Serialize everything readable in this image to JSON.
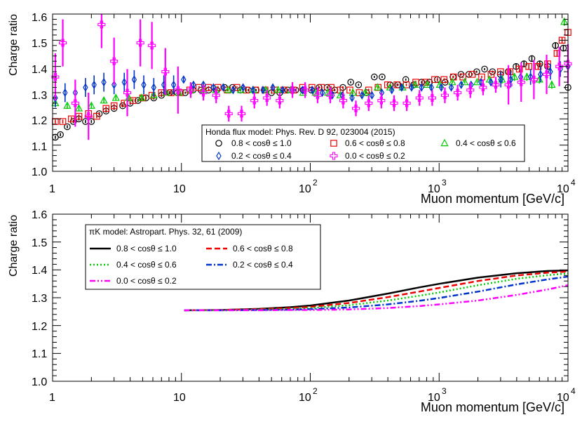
{
  "chart_data": [
    {
      "type": "scatter",
      "panel": "top",
      "xlabel": "Muon momentum [GeV/c]",
      "ylabel": "Charge ratio",
      "xscale": "log",
      "xlim": [
        1,
        10000
      ],
      "ylim": [
        1.0,
        1.6
      ],
      "x_tick_labels": [
        "1",
        "10",
        "10",
        "10",
        "10"
      ],
      "x_tick_exponents": [
        "",
        "",
        "2",
        "3",
        "4"
      ],
      "y_tick_labels": [
        "1.0",
        "1.1",
        "1.2",
        "1.3",
        "1.4",
        "1.5",
        "1.6"
      ],
      "legend_title": "Honda flux model: Phys. Rev. D 92, 023004 (2015)",
      "legend_placement": "center-right",
      "series": [
        {
          "name": "0.8 < cosθ ≤ 1.0",
          "marker": "circle",
          "color": "#000000",
          "x": [
            1.05,
            1.15,
            1.3,
            1.45,
            1.6,
            1.8,
            2.0,
            2.3,
            2.6,
            3.0,
            3.5,
            4.0,
            4.6,
            5.3,
            6.1,
            7.0,
            8.1,
            9.3,
            10.7,
            12.3,
            14.2,
            16.3,
            18.8,
            21.6,
            24.9,
            28.7,
            33,
            38,
            44,
            50,
            58,
            67,
            77,
            88,
            102,
            117,
            135,
            155,
            179,
            206,
            237,
            273,
            314,
            361,
            416,
            479,
            551,
            634,
            730,
            841,
            968,
            1114,
            1283,
            1477,
            1700,
            1957,
            2253,
            2594,
            2986,
            3437,
            3957,
            4555,
            5244,
            6037,
            6950,
            8000,
            9210,
            10000
          ],
          "y": [
            1.13,
            1.14,
            1.17,
            1.19,
            1.2,
            1.19,
            1.19,
            1.22,
            1.23,
            1.24,
            1.25,
            1.26,
            1.27,
            1.28,
            1.28,
            1.29,
            1.3,
            1.3,
            1.3,
            1.31,
            1.31,
            1.31,
            1.31,
            1.32,
            1.32,
            1.31,
            1.31,
            1.31,
            1.31,
            1.3,
            1.3,
            1.31,
            1.31,
            1.31,
            1.31,
            1.32,
            1.32,
            1.31,
            1.32,
            1.34,
            1.33,
            1.3,
            1.36,
            1.36,
            1.33,
            1.33,
            1.35,
            1.33,
            1.34,
            1.34,
            1.35,
            1.34,
            1.36,
            1.37,
            1.37,
            1.38,
            1.39,
            1.38,
            1.37,
            1.38,
            1.4,
            1.41,
            1.43,
            1.41,
            1.4,
            1.48,
            1.47,
            1.32
          ]
        },
        {
          "name": "0.6 < cosθ ≤ 0.8",
          "marker": "square",
          "color": "#ee0000",
          "x": [
            1.05,
            1.2,
            1.4,
            1.6,
            1.9,
            2.2,
            2.6,
            3.0,
            3.6,
            4.2,
            5.0,
            5.9,
            7.0,
            8.3,
            9.8,
            11.6,
            13.7,
            16.2,
            19.2,
            22.7,
            26.9,
            31.8,
            37.6,
            44.5,
            52.7,
            62.3,
            73.8,
            87.3,
            103,
            122,
            145,
            171,
            203,
            240,
            284,
            336,
            398,
            471,
            557,
            659,
            780,
            923,
            1092,
            1292,
            1529,
            1809,
            2141,
            2533,
            2998,
            3547,
            4197,
            4966,
            5877,
            6954,
            8229,
            9000,
            10000
          ],
          "y": [
            1.19,
            1.19,
            1.2,
            1.21,
            1.22,
            1.21,
            1.24,
            1.25,
            1.26,
            1.27,
            1.28,
            1.29,
            1.3,
            1.3,
            1.3,
            1.31,
            1.32,
            1.32,
            1.32,
            1.31,
            1.32,
            1.31,
            1.31,
            1.31,
            1.31,
            1.31,
            1.31,
            1.32,
            1.32,
            1.32,
            1.32,
            1.31,
            1.31,
            1.3,
            1.31,
            1.32,
            1.33,
            1.33,
            1.33,
            1.34,
            1.34,
            1.35,
            1.35,
            1.36,
            1.36,
            1.37,
            1.36,
            1.37,
            1.38,
            1.38,
            1.39,
            1.4,
            1.4,
            1.41,
            1.45,
            1.5,
            1.53
          ]
        },
        {
          "name": "0.4 < cosθ ≤ 0.6",
          "marker": "triangle",
          "color": "#00cc00",
          "x": [
            1.05,
            1.3,
            1.6,
            2.0,
            2.5,
            3.1,
            3.9,
            4.9,
            6.1,
            7.6,
            9.5,
            11.9,
            14.8,
            18.5,
            23.1,
            28.9,
            36.1,
            45.1,
            56.3,
            70.3,
            87.8,
            110,
            137,
            171,
            214,
            267,
            333,
            416,
            520,
            649,
            811,
            1013,
            1265,
            1580,
            1973,
            2464,
            3078,
            3844,
            4801,
            5996,
            7489,
            9354
          ],
          "y": [
            1.26,
            1.25,
            1.24,
            1.25,
            1.27,
            1.28,
            1.28,
            1.28,
            1.29,
            1.3,
            1.3,
            1.31,
            1.31,
            1.31,
            1.31,
            1.31,
            1.31,
            1.31,
            1.31,
            1.31,
            1.3,
            1.3,
            1.3,
            1.29,
            1.3,
            1.3,
            1.32,
            1.32,
            1.32,
            1.33,
            1.33,
            1.33,
            1.34,
            1.34,
            1.34,
            1.35,
            1.35,
            1.36,
            1.36,
            1.35,
            1.33,
            1.57
          ]
        },
        {
          "name": "0.2 < cosθ ≤ 0.4",
          "marker": "diamond",
          "color": "#0033cc",
          "x": [
            1.05,
            1.25,
            1.5,
            1.8,
            2.1,
            2.5,
            3.0,
            3.6,
            4.3,
            5.1,
            6.1,
            7.3,
            8.7,
            10.4,
            12.4,
            14.8,
            17.7,
            21.1,
            25.2,
            30.1,
            35.9,
            42.9,
            51.2,
            61.1,
            73,
            87,
            104,
            124,
            148,
            177,
            211,
            252,
            301,
            359,
            429,
            512,
            611,
            730,
            871,
            1040,
            1242,
            1483,
            1770,
            2113,
            2523,
            3012,
            3596,
            4293,
            5126,
            6120,
            7306,
            8723,
            10000
          ],
          "y": [
            1.28,
            1.3,
            1.3,
            1.32,
            1.33,
            1.34,
            1.33,
            1.34,
            1.35,
            1.33,
            1.32,
            1.33,
            1.33,
            1.35,
            1.33,
            1.33,
            1.32,
            1.32,
            1.31,
            1.32,
            1.31,
            1.31,
            1.32,
            1.31,
            1.31,
            1.31,
            1.31,
            1.3,
            1.29,
            1.29,
            1.28,
            1.29,
            1.29,
            1.3,
            1.31,
            1.32,
            1.32,
            1.32,
            1.32,
            1.32,
            1.32,
            1.33,
            1.33,
            1.34,
            1.34,
            1.35,
            1.35,
            1.36,
            1.36,
            1.37,
            1.38,
            1.39,
            1.4
          ]
        },
        {
          "name": "0.0 < cosθ ≤ 0.2",
          "marker": "cross",
          "color": "#ff00ff",
          "x": [
            1.05,
            1.2,
            1.5,
            1.9,
            2.4,
            3.0,
            3.8,
            4.8,
            5.9,
            7.5,
            9.4,
            11.8,
            14.8,
            18.6,
            23.3,
            29.3,
            36.8,
            46.1,
            57.9,
            72.7,
            91.2,
            114,
            143,
            180,
            226,
            284,
            356,
            447,
            561,
            704,
            884,
            1109,
            1392,
            1747,
            2192,
            2751,
            3453,
            4334,
            5439,
            6826,
            8567,
            10000
          ],
          "y": [
            1.36,
            1.49,
            1.26,
            1.21,
            1.56,
            1.42,
            1.3,
            1.49,
            1.48,
            1.38,
            1.31,
            1.31,
            1.3,
            1.29,
            1.22,
            1.22,
            1.27,
            1.28,
            1.27,
            1.31,
            1.31,
            1.29,
            1.29,
            1.27,
            1.24,
            1.26,
            1.27,
            1.26,
            1.26,
            1.28,
            1.28,
            1.29,
            1.3,
            1.31,
            1.32,
            1.33,
            1.33,
            1.34,
            1.35,
            1.37,
            1.4,
            1.41
          ]
        }
      ]
    },
    {
      "type": "line",
      "panel": "bottom",
      "xlabel": "Muon momentum [GeV/c]",
      "ylabel": "Charge ratio",
      "xscale": "log",
      "xlim": [
        1,
        10000
      ],
      "ylim": [
        1.0,
        1.6
      ],
      "x_tick_labels": [
        "1",
        "10",
        "10",
        "10",
        "10"
      ],
      "x_tick_exponents": [
        "",
        "",
        "2",
        "3",
        "4"
      ],
      "y_tick_labels": [
        "1.0",
        "1.1",
        "1.2",
        "1.3",
        "1.4",
        "1.5",
        "1.6"
      ],
      "legend_title": "πK model: Astropart. Phys. 32, 61 (2009)",
      "legend_placement": "top-left",
      "series": [
        {
          "name": "0.8 < cosθ ≤ 1.0",
          "style": "solid",
          "color": "#000000",
          "x": [
            10.5,
            20,
            40,
            70,
            100,
            200,
            400,
            700,
            1000,
            2000,
            4000,
            7000,
            10000
          ],
          "y": [
            1.255,
            1.256,
            1.26,
            1.266,
            1.272,
            1.29,
            1.315,
            1.337,
            1.35,
            1.372,
            1.388,
            1.396,
            1.398
          ]
        },
        {
          "name": "0.6 < cosθ ≤ 0.8",
          "style": "dashed",
          "color": "#ee0000",
          "x": [
            10.5,
            20,
            40,
            70,
            100,
            200,
            400,
            700,
            1000,
            2000,
            4000,
            7000,
            10000
          ],
          "y": [
            1.255,
            1.256,
            1.259,
            1.263,
            1.267,
            1.281,
            1.302,
            1.322,
            1.335,
            1.36,
            1.38,
            1.39,
            1.394
          ]
        },
        {
          "name": "0.4 < cosθ ≤ 0.6",
          "style": "dotted",
          "color": "#00cc00",
          "x": [
            10.5,
            20,
            40,
            70,
            100,
            200,
            400,
            700,
            1000,
            2000,
            4000,
            7000,
            10000
          ],
          "y": [
            1.255,
            1.255,
            1.257,
            1.26,
            1.263,
            1.273,
            1.29,
            1.307,
            1.319,
            1.345,
            1.368,
            1.381,
            1.387
          ]
        },
        {
          "name": "0.2 < cosθ ≤ 0.4",
          "style": "dashdot",
          "color": "#0033cc",
          "x": [
            10.5,
            20,
            40,
            70,
            100,
            200,
            400,
            700,
            1000,
            2000,
            4000,
            7000,
            10000
          ],
          "y": [
            1.255,
            1.255,
            1.256,
            1.257,
            1.259,
            1.265,
            1.276,
            1.289,
            1.299,
            1.322,
            1.348,
            1.366,
            1.376
          ]
        },
        {
          "name": "0.0 < cosθ ≤ 0.2",
          "style": "dashdotdot",
          "color": "#ff00ff",
          "x": [
            10.5,
            20,
            40,
            70,
            100,
            200,
            400,
            700,
            1000,
            2000,
            4000,
            7000,
            10000
          ],
          "y": [
            1.255,
            1.255,
            1.255,
            1.256,
            1.256,
            1.258,
            1.263,
            1.27,
            1.276,
            1.29,
            1.31,
            1.33,
            1.345
          ]
        }
      ]
    }
  ]
}
